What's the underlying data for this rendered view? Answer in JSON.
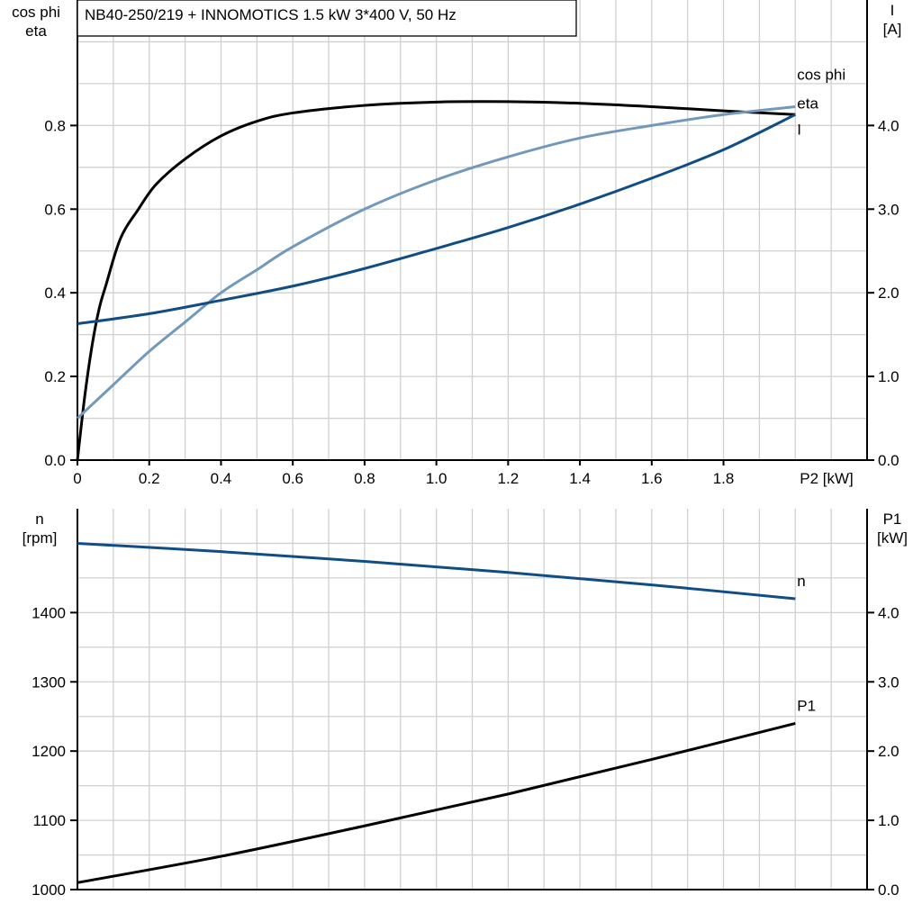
{
  "chart_data": [
    {
      "type": "line",
      "title": "NB40-250/219 + INNOMOTICS   1.5 kW   3*400 V, 50 Hz",
      "xlabel": "P2 [kW]",
      "ylabel_left": [
        "cos phi",
        "eta"
      ],
      "ylabel_right": [
        "I",
        "[A]"
      ],
      "xlim": [
        0,
        2.2
      ],
      "ylim_left": [
        0,
        1.1
      ],
      "ylim_right": [
        0,
        5.5
      ],
      "xticks": [
        "0",
        "0.2",
        "0.4",
        "0.6",
        "0.8",
        "1.0",
        "1.2",
        "1.4",
        "1.6",
        "1.8"
      ],
      "yticks_left": [
        "0.0",
        "0.2",
        "0.4",
        "0.6",
        "0.8"
      ],
      "yticks_right": [
        "0.0",
        "1.0",
        "2.0",
        "3.0",
        "4.0"
      ],
      "grid": true,
      "series": [
        {
          "name": "eta",
          "axis": "left",
          "color": "#000000",
          "x": [
            0,
            0.02,
            0.04,
            0.06,
            0.08,
            0.12,
            0.17,
            0.22,
            0.3,
            0.4,
            0.5,
            0.6,
            0.8,
            1.0,
            1.2,
            1.4,
            1.6,
            1.8,
            2.0
          ],
          "y": [
            0,
            0.15,
            0.27,
            0.36,
            0.42,
            0.53,
            0.6,
            0.66,
            0.72,
            0.775,
            0.81,
            0.83,
            0.848,
            0.856,
            0.857,
            0.853,
            0.845,
            0.835,
            0.826
          ]
        },
        {
          "name": "cos phi",
          "axis": "left",
          "color": "#7299bb",
          "x": [
            0,
            0.1,
            0.2,
            0.3,
            0.4,
            0.5,
            0.6,
            0.8,
            1.0,
            1.2,
            1.4,
            1.6,
            1.8,
            2.0
          ],
          "y": [
            0.1,
            0.18,
            0.26,
            0.33,
            0.4,
            0.455,
            0.51,
            0.6,
            0.67,
            0.725,
            0.77,
            0.8,
            0.826,
            0.845
          ]
        },
        {
          "name": "I",
          "axis": "right",
          "color": "#114d85",
          "x": [
            0,
            0.2,
            0.4,
            0.6,
            0.8,
            1.0,
            1.2,
            1.4,
            1.6,
            1.8,
            2.0
          ],
          "y": [
            1.63,
            1.75,
            1.91,
            2.08,
            2.29,
            2.53,
            2.78,
            3.06,
            3.37,
            3.71,
            4.13
          ]
        }
      ]
    },
    {
      "type": "line",
      "ylabel_left": [
        "n",
        "[rpm]"
      ],
      "ylabel_right": [
        "P1",
        "[kW]"
      ],
      "xlim": [
        0,
        2.2
      ],
      "ylim_left": [
        1000,
        1550
      ],
      "ylim_right": [
        0,
        5.5
      ],
      "yticks_left": [
        "1000",
        "1100",
        "1200",
        "1300",
        "1400"
      ],
      "yticks_right": [
        "0.0",
        "1.0",
        "2.0",
        "3.0",
        "4.0"
      ],
      "grid": true,
      "series": [
        {
          "name": "n",
          "axis": "left",
          "color": "#114d85",
          "x": [
            0,
            0.4,
            0.8,
            1.2,
            1.6,
            2.0
          ],
          "y": [
            1500,
            1488,
            1474,
            1458,
            1440,
            1420
          ]
        },
        {
          "name": "P1",
          "axis": "right",
          "color": "#000000",
          "x": [
            0,
            0.4,
            0.8,
            1.2,
            1.6,
            2.0
          ],
          "y": [
            0.1,
            0.48,
            0.92,
            1.38,
            1.88,
            2.4
          ]
        }
      ]
    }
  ]
}
